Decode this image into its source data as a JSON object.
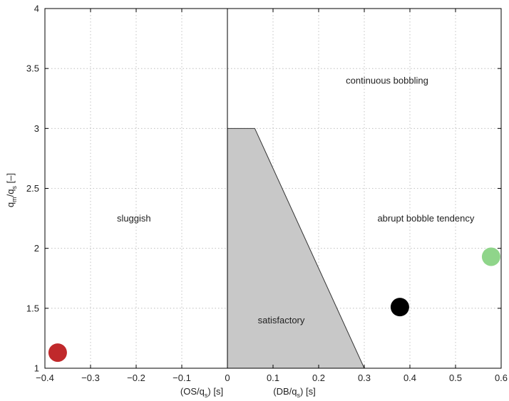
{
  "chart_data": {
    "type": "scatter",
    "title": "",
    "xlim": [
      -0.4,
      0.6
    ],
    "ylim": [
      1,
      4
    ],
    "grid": true,
    "legend": "none",
    "xticks": [
      -0.4,
      -0.3,
      -0.2,
      -0.1,
      0,
      0.1,
      0.2,
      0.3,
      0.4,
      0.5,
      0.6
    ],
    "xtick_labels": [
      "−0.4",
      "−0.3",
      "−0.2",
      "−0.1",
      "0",
      "0.1",
      "0.2",
      "0.3",
      "0.4",
      "0.5",
      "0.6"
    ],
    "yticks": [
      1,
      1.5,
      2,
      2.5,
      3,
      3.5,
      4
    ],
    "ytick_labels": [
      "1",
      "1.5",
      "2",
      "2.5",
      "3",
      "3.5",
      "4"
    ],
    "xlabel_left": {
      "base": "(OS/q",
      "sub": "s",
      "tail": ") [s]"
    },
    "xlabel_right": {
      "base": "(DB/q",
      "sub": "s",
      "tail": ") [s]"
    },
    "ylabel": {
      "m1": "q",
      "s1": "m",
      "m2": "/q",
      "s2": "s",
      "m3": " [–]"
    },
    "region_labels": [
      {
        "text": "continuous bobbling",
        "x": 0.35,
        "y": 3.4
      },
      {
        "text": "sluggish",
        "x": -0.205,
        "y": 2.25
      },
      {
        "text": "abrupt bobble tendency",
        "x": 0.435,
        "y": 2.25
      },
      {
        "text": "satisfactory",
        "x": 0.118,
        "y": 1.4
      }
    ],
    "satisfactory_region": {
      "x": [
        0,
        0,
        0.06,
        0.3
      ],
      "y": [
        1,
        3,
        3,
        1
      ],
      "color": "#c8c8c8"
    },
    "points": [
      {
        "x": -0.372,
        "y": 1.13,
        "color": "#c0292b"
      },
      {
        "x": 0.378,
        "y": 1.51,
        "color": "#000000"
      },
      {
        "x": 0.578,
        "y": 1.93,
        "color": "#8fd58a"
      }
    ]
  }
}
